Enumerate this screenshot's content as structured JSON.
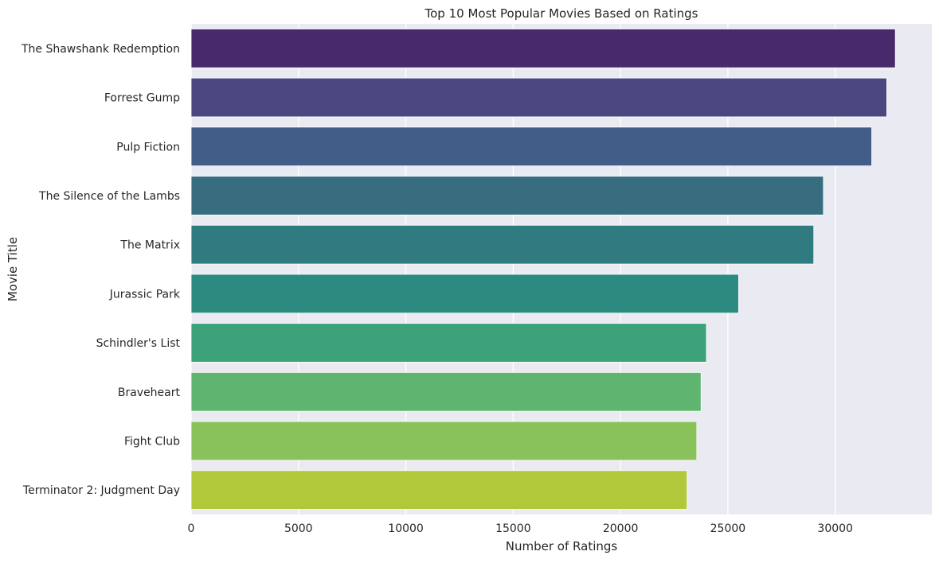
{
  "chart_data": {
    "type": "bar",
    "orientation": "horizontal",
    "title": "Top 10 Most Popular Movies Based on Ratings",
    "xlabel": "Number of Ratings",
    "ylabel": "Movie Title",
    "xlim": [
      0,
      34500
    ],
    "x_ticks": [
      0,
      5000,
      10000,
      15000,
      20000,
      25000,
      30000
    ],
    "x_tick_labels": [
      "0",
      "5000",
      "10000",
      "15000",
      "20000",
      "25000",
      "30000"
    ],
    "grid": true,
    "background_color": "#eaeaf2",
    "grid_color": "#ffffff",
    "categories": [
      "The Shawshank Redemption",
      "Forrest Gump",
      "Pulp Fiction",
      "The Silence of the Lambs",
      "The Matrix",
      "Jurassic Park",
      "Schindler's List",
      "Braveheart",
      "Fight Club",
      "Terminator 2: Judgment Day"
    ],
    "values": [
      32800,
      32400,
      31700,
      29450,
      29000,
      25500,
      24000,
      23750,
      23550,
      23100
    ],
    "colors": [
      "#482a6c",
      "#4a477e",
      "#425d87",
      "#386d80",
      "#307b80",
      "#2c8a80",
      "#3ca279",
      "#5fb570",
      "#89c25b",
      "#b1c83a"
    ]
  }
}
